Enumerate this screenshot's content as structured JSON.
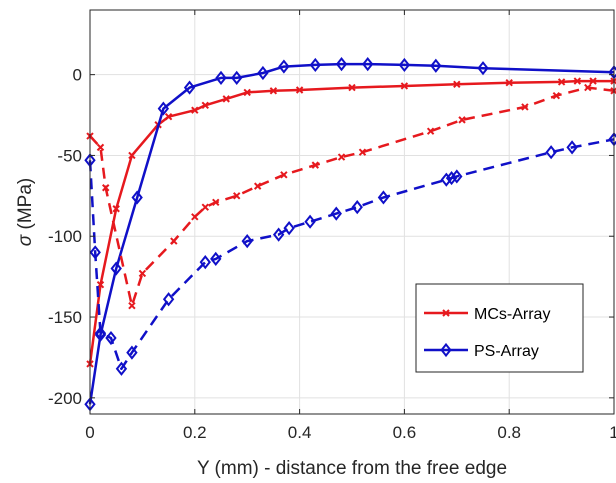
{
  "chart_data": {
    "type": "line",
    "title": "",
    "xlabel": "Y (mm) - distance from the free edge",
    "ylabel_symbol": "σ",
    "ylabel_unit": " (MPa)",
    "xlim": [
      0,
      1
    ],
    "ylim": [
      -210,
      40
    ],
    "xticks": [
      0,
      0.2,
      0.4,
      0.6,
      0.8,
      1
    ],
    "xtick_labels": [
      "0",
      "0.2",
      "0.4",
      "0.6",
      "0.8",
      "1"
    ],
    "yticks": [
      -200,
      -150,
      -100,
      -50,
      0
    ],
    "ytick_labels": [
      "-200",
      "-150",
      "-100",
      "-50",
      "0"
    ],
    "grid": true,
    "legend_position": "bottom-right",
    "colors": {
      "red": "#e6191e",
      "blue": "#1010c8",
      "grid": "#e1e1e1",
      "axis": "#262626"
    },
    "series": [
      {
        "name": "MCs-Array",
        "color": "#e6191e",
        "marker": "x-mark",
        "style": "solid",
        "x": [
          0,
          0.02,
          0.05,
          0.08,
          0.13,
          0.15,
          0.2,
          0.22,
          0.26,
          0.3,
          0.35,
          0.4,
          0.5,
          0.6,
          0.7,
          0.8,
          0.9,
          0.93,
          0.96,
          1
        ],
        "y": [
          -179,
          -130,
          -83,
          -50,
          -31,
          -26,
          -22,
          -19,
          -15,
          -11,
          -10,
          -9.5,
          -8,
          -7,
          -6,
          -5,
          -4.5,
          -4,
          -4,
          -4
        ]
      },
      {
        "name": "PS-Array",
        "color": "#1010c8",
        "marker": "diamond",
        "style": "solid",
        "x": [
          0,
          0.02,
          0.05,
          0.09,
          0.14,
          0.19,
          0.25,
          0.28,
          0.33,
          0.37,
          0.43,
          0.48,
          0.53,
          0.6,
          0.66,
          0.75,
          1
        ],
        "y": [
          -204,
          -161,
          -120,
          -76,
          -21,
          -8,
          -2,
          -2,
          1,
          5,
          6,
          6.5,
          6.5,
          6,
          5.5,
          4,
          1.5
        ]
      },
      {
        "name": "",
        "color": "#e6191e",
        "marker": "x-mark",
        "style": "dashed",
        "x": [
          0,
          0.02,
          0.03,
          0.08,
          0.1,
          0.16,
          0.2,
          0.22,
          0.24,
          0.28,
          0.32,
          0.37,
          0.43,
          0.48,
          0.52,
          0.65,
          0.71,
          0.83,
          0.89,
          0.95,
          1
        ],
        "y": [
          -38,
          -45,
          -70,
          -143,
          -123,
          -103,
          -88,
          -82,
          -79,
          -75,
          -69,
          -62,
          -56,
          -51,
          -48,
          -35,
          -28,
          -20,
          -13,
          -8,
          -10
        ]
      },
      {
        "name": "",
        "color": "#1010c8",
        "marker": "diamond",
        "style": "dashed",
        "x": [
          0,
          0.01,
          0.02,
          0.04,
          0.06,
          0.08,
          0.15,
          0.22,
          0.24,
          0.3,
          0.36,
          0.38,
          0.42,
          0.47,
          0.51,
          0.56,
          0.68,
          0.69,
          0.7,
          0.88,
          0.92,
          1
        ],
        "y": [
          -53,
          -110,
          -160,
          -163,
          -182,
          -172,
          -139,
          -116,
          -114,
          -103,
          -99,
          -95,
          -91,
          -86,
          -82,
          -76,
          -65,
          -64,
          -63,
          -48,
          -45,
          -40
        ]
      }
    ]
  }
}
